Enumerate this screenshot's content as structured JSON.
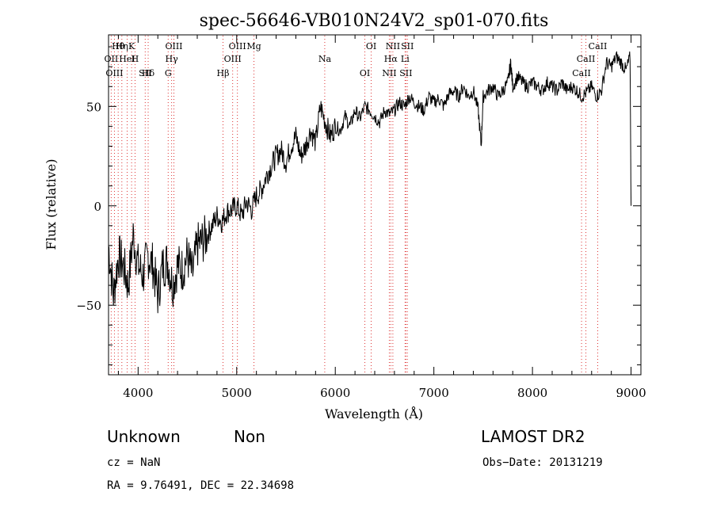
{
  "chart_data": {
    "type": "line",
    "title": "spec-56646-VB010N24V2_sp01-070.fits",
    "xlabel": "Wavelength (Å)",
    "ylabel": "Flux (relative)",
    "xlim": [
      3700,
      9100
    ],
    "ylim": [
      -85,
      86
    ],
    "xticks": [
      4000,
      5000,
      6000,
      7000,
      8000,
      9000
    ],
    "xtick_labels": [
      "4000",
      "5000",
      "6000",
      "7000",
      "8000",
      "9000"
    ],
    "yticks": [
      -50,
      0,
      50
    ],
    "ytick_labels": [
      "−50",
      "0",
      "50"
    ],
    "grid": false,
    "series": [
      {
        "x": [
          3700,
          3750,
          3800,
          3850,
          3900,
          3950,
          4000,
          4050,
          4100,
          4150,
          4200,
          4250,
          4300,
          4350,
          4400,
          4450,
          4500,
          4550,
          4600,
          4650,
          4700,
          4750,
          4800,
          4850,
          4900,
          4950,
          5000,
          5050,
          5100,
          5150,
          5200,
          5250,
          5300,
          5350,
          5400,
          5450,
          5500,
          5550,
          5600,
          5650,
          5700,
          5750,
          5800,
          5850,
          5900,
          5950,
          6000,
          6050,
          6100,
          6150,
          6200,
          6250,
          6300,
          6350,
          6400,
          6450,
          6500,
          6550,
          6600,
          6650,
          6700,
          6750,
          6800,
          6850,
          6900,
          6950,
          7000,
          7050,
          7100,
          7150,
          7200,
          7250,
          7300,
          7350,
          7400,
          7450,
          7480,
          7500,
          7550,
          7600,
          7650,
          7700,
          7750,
          7780,
          7800,
          7850,
          7900,
          7950,
          8000,
          8050,
          8100,
          8150,
          8200,
          8250,
          8300,
          8350,
          8400,
          8450,
          8500,
          8550,
          8600,
          8650,
          8700,
          8750,
          8800,
          8850,
          8900,
          8950,
          8990,
          9000
        ],
        "y": [
          -20,
          -45,
          -25,
          -30,
          -40,
          -15,
          -30,
          -35,
          -25,
          -30,
          -45,
          -30,
          -28,
          -40,
          -30,
          -32,
          -25,
          -35,
          -20,
          -18,
          -15,
          -10,
          -5,
          -8,
          -3,
          -2,
          0,
          -5,
          2,
          -2,
          5,
          8,
          15,
          20,
          25,
          28,
          22,
          30,
          35,
          25,
          30,
          38,
          32,
          50,
          42,
          35,
          40,
          38,
          45,
          40,
          48,
          44,
          50,
          48,
          45,
          42,
          48,
          46,
          48,
          52,
          50,
          55,
          52,
          50,
          48,
          55,
          52,
          54,
          50,
          56,
          58,
          55,
          60,
          55,
          58,
          48,
          30,
          55,
          58,
          60,
          55,
          58,
          62,
          72,
          60,
          65,
          62,
          60,
          62,
          60,
          58,
          62,
          60,
          58,
          62,
          58,
          60,
          58,
          55,
          57,
          60,
          55,
          58,
          72,
          70,
          75,
          72,
          68,
          75,
          0
        ]
      }
    ],
    "lines": [
      {
        "name": "Hθ",
        "x": 3798
      },
      {
        "name": "OII",
        "x": 3727
      },
      {
        "name": "OIII",
        "x": 3760
      },
      {
        "name": "K",
        "x": 3934
      },
      {
        "name": "HeI",
        "x": 3889
      },
      {
        "name": "SII",
        "x": 4072
      },
      {
        "name": "Hη",
        "x": 3835
      },
      {
        "name": "H",
        "x": 3969
      },
      {
        "name": "Hδ",
        "x": 4102
      },
      {
        "name": "OIII",
        "x": 4363
      },
      {
        "name": "Hγ",
        "x": 4340
      },
      {
        "name": "G",
        "x": 4305
      },
      {
        "name": "OIII",
        "x": 5007
      },
      {
        "name": "OIII",
        "x": 4959
      },
      {
        "name": "Hβ",
        "x": 4861
      },
      {
        "name": "Mg",
        "x": 5175
      },
      {
        "name": "Na",
        "x": 5893
      },
      {
        "name": "OI",
        "x": 6300
      },
      {
        "name": "OI",
        "x": 6364
      },
      {
        "name": "Hα",
        "x": 6563
      },
      {
        "name": "SII",
        "x": 6716
      },
      {
        "name": "NII",
        "x": 6584
      },
      {
        "name": "Li",
        "x": 6708
      },
      {
        "name": "NII",
        "x": 6548
      },
      {
        "name": "SII",
        "x": 6731
      },
      {
        "name": "CaII",
        "x": 8542
      },
      {
        "name": "CaII",
        "x": 8498
      },
      {
        "name": "CaII",
        "x": 8662
      }
    ]
  },
  "info": {
    "class": "Unknown",
    "subclass": "Non",
    "survey": "LAMOST DR2",
    "cz": "cz = NaN",
    "obsdate": "Obs−Date: 20131219",
    "radec": "RA =   9.76491, DEC =  22.34698"
  }
}
